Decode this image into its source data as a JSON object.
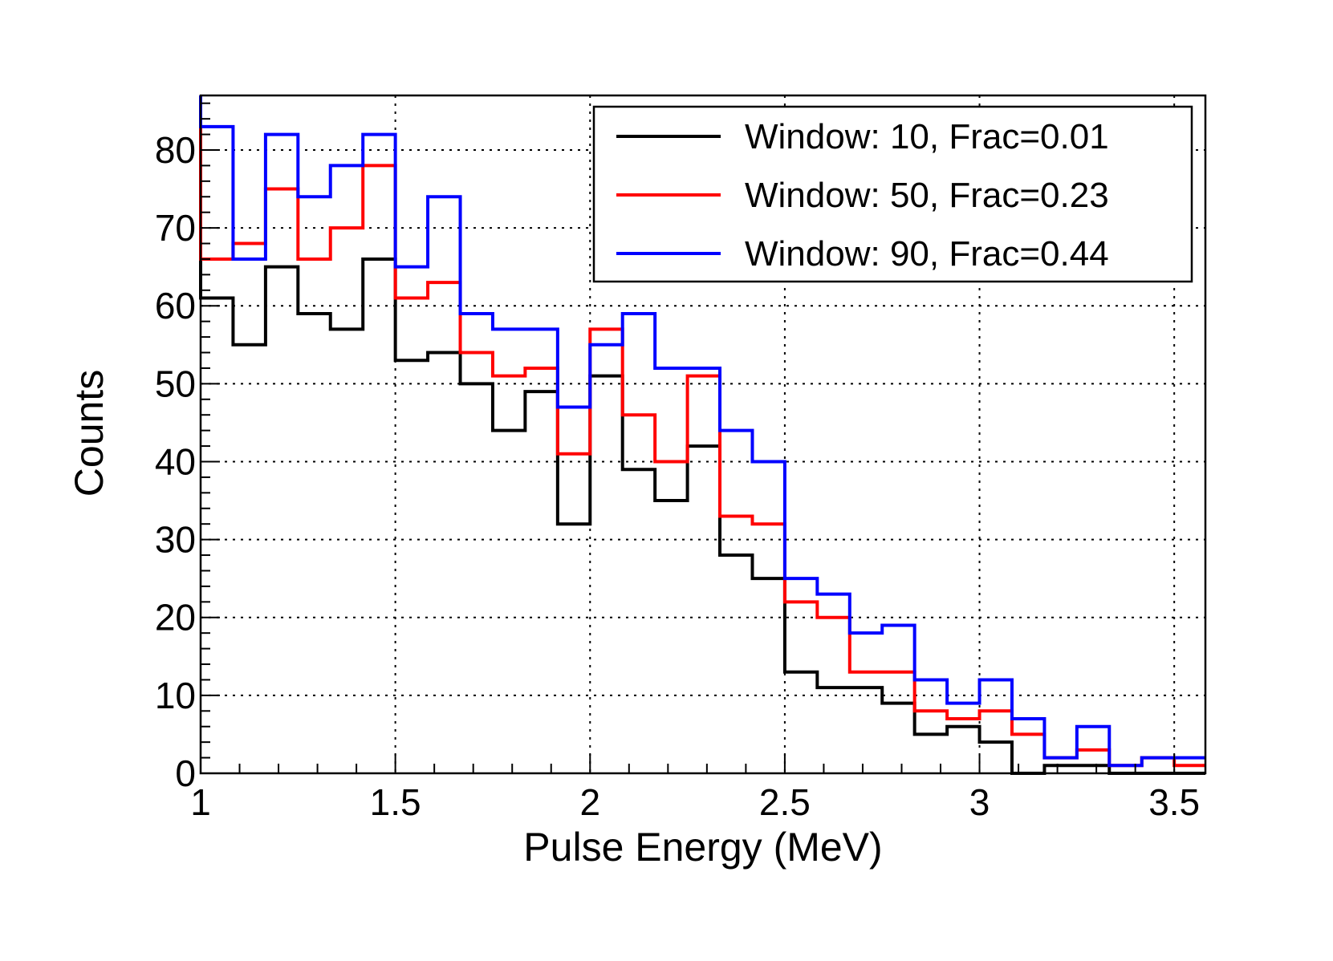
{
  "chart_data": {
    "type": "histogram",
    "title": "",
    "xlabel": "Pulse Energy (MeV)",
    "ylabel": "Counts",
    "xlim": [
      1.0,
      3.58
    ],
    "ylim": [
      0,
      87
    ],
    "grid": true,
    "legend_position": "top-right",
    "x_ticks": [
      1,
      1.5,
      2,
      2.5,
      3,
      3.5
    ],
    "x_tick_labels": [
      "1",
      "1.5",
      "2",
      "2.5",
      "3",
      "3.5"
    ],
    "y_ticks": [
      0,
      10,
      20,
      30,
      40,
      50,
      60,
      70,
      80
    ],
    "y_tick_labels": [
      "0",
      "10",
      "20",
      "30",
      "40",
      "50",
      "60",
      "70",
      "80"
    ],
    "bin_edges": [
      1.0,
      1.0833,
      1.1667,
      1.25,
      1.3333,
      1.4167,
      1.5,
      1.5833,
      1.6667,
      1.75,
      1.8333,
      1.9167,
      2.0,
      2.0833,
      2.1667,
      2.25,
      2.3333,
      2.4167,
      2.5,
      2.5833,
      2.6667,
      2.75,
      2.8333,
      2.9167,
      3.0,
      3.0833,
      3.1667,
      3.25,
      3.3333,
      3.4167,
      3.5,
      3.58
    ],
    "series": [
      {
        "name": "Window: 10, Frac=0.01",
        "color": "#000000",
        "values": [
          61,
          55,
          65,
          59,
          57,
          66,
          53,
          54,
          50,
          44,
          49,
          32,
          51,
          39,
          35,
          42,
          28,
          25,
          13,
          11,
          11,
          9,
          5,
          6,
          4,
          0,
          1,
          1,
          0,
          0,
          0
        ]
      },
      {
        "name": "Window: 50, Frac=0.23",
        "color": "#ff0000",
        "values": [
          66,
          68,
          75,
          66,
          70,
          78,
          61,
          63,
          54,
          51,
          52,
          41,
          57,
          46,
          40,
          51,
          33,
          32,
          22,
          20,
          13,
          13,
          8,
          7,
          8,
          5,
          2,
          3,
          1,
          2,
          1
        ]
      },
      {
        "name": "Window: 90, Frac=0.44",
        "color": "#0000ff",
        "values": [
          83,
          66,
          82,
          74,
          78,
          82,
          65,
          74,
          59,
          57,
          57,
          47,
          55,
          59,
          52,
          52,
          44,
          40,
          25,
          23,
          18,
          19,
          12,
          9,
          12,
          7,
          2,
          6,
          1,
          2,
          2
        ]
      }
    ]
  }
}
